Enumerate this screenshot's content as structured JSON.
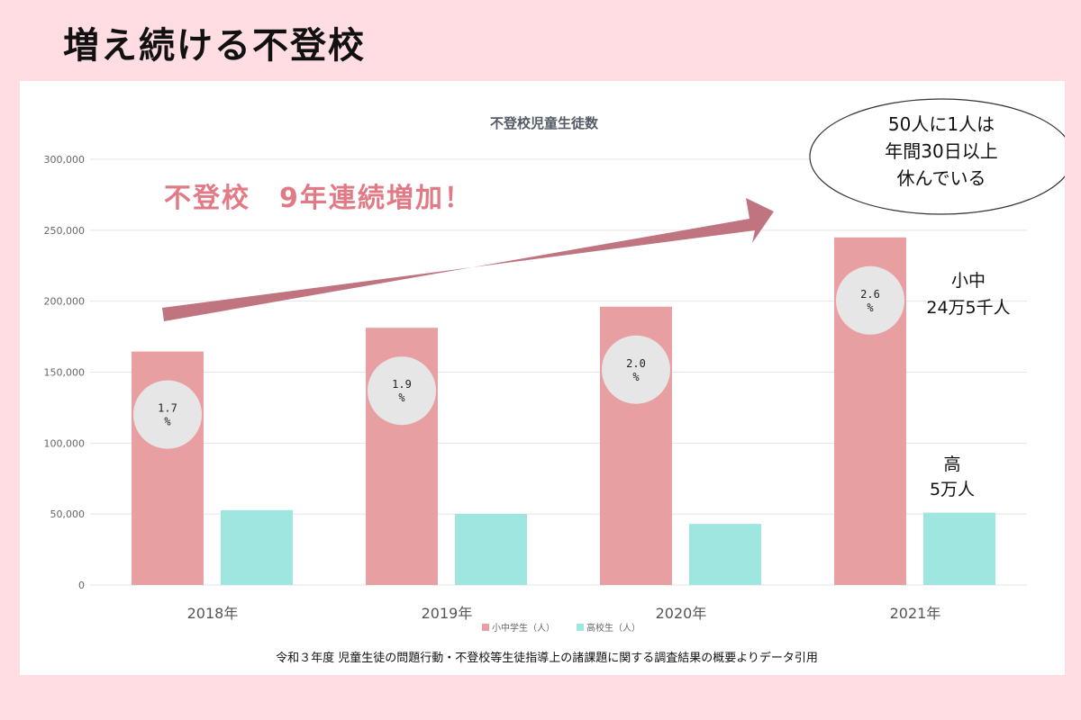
{
  "page_title": "増え続ける不登校",
  "headline": "不登校　9年連続増加！",
  "callout": [
    "50人に1人は",
    "年間30日以上",
    "休んでいる"
  ],
  "annotation_elem": [
    "小中",
    "24万5千人"
  ],
  "annotation_high": [
    "高",
    "5万人"
  ],
  "source": "令和３年度 児童生徒の問題行動・不登校等生徒指導上の諸課題に関する調査結果の概要よりデータ引用",
  "colors": {
    "elem": "#e89fa2",
    "high": "#9fe6e0",
    "arrow": "#bf7480",
    "headline": "#e27a86",
    "bubble": "#e6e6e6"
  },
  "chart_data": {
    "type": "bar",
    "title": "不登校児童生徒数",
    "categories": [
      "2018年",
      "2019年",
      "2020年",
      "2021年"
    ],
    "series": [
      {
        "name": "小中学生（人）",
        "values": [
          164528,
          181272,
          196127,
          244940
        ]
      },
      {
        "name": "高校生（人）",
        "values": [
          52723,
          50100,
          43051,
          50985
        ]
      }
    ],
    "percent_labels": [
      [
        "1.7",
        "%"
      ],
      [
        "1.9",
        "%"
      ],
      [
        "2.0",
        "%"
      ],
      [
        "2.6",
        "%"
      ]
    ],
    "ylim": [
      0,
      300000
    ],
    "yticks": [
      "0",
      "50,000",
      "100,000",
      "150,000",
      "200,000",
      "250,000",
      "300,000"
    ],
    "grid": true,
    "legend_position": "bottom"
  }
}
